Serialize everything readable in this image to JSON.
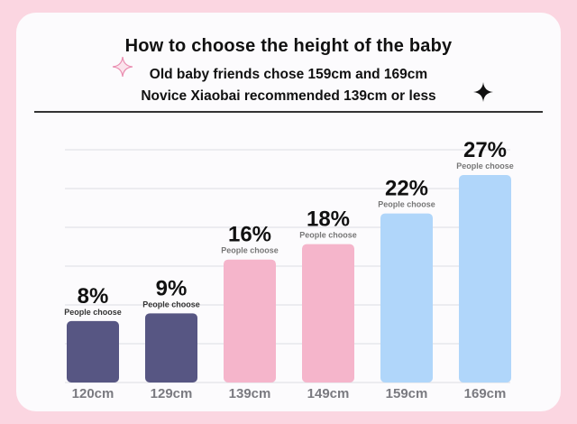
{
  "header": {
    "title": "How to choose the height of the baby",
    "subtitle_1": "Old baby friends chose 159cm and 169cm",
    "subtitle_2": "Novice Xiaobai recommended 139cm or less"
  },
  "icons": {
    "left": "sparkle-icon",
    "right": "sparkle-icon"
  },
  "colors": {
    "background": "#fbd6e1",
    "dark_bar": "#575683",
    "pink_bar": "#f5b5cb",
    "blue_bar": "#b0d6fa"
  },
  "chart_data": {
    "type": "bar",
    "title": "How to choose the height of the baby",
    "categories": [
      "120cm",
      "129cm",
      "139cm",
      "149cm",
      "159cm",
      "169cm"
    ],
    "values": [
      8,
      9,
      16,
      18,
      22,
      27
    ],
    "value_labels": [
      "8%",
      "9%",
      "16%",
      "18%",
      "22%",
      "27%"
    ],
    "bar_caption": "People choose",
    "bar_colors": [
      "#575683",
      "#575683",
      "#f5b5cb",
      "#f5b5cb",
      "#b0d6fa",
      "#b0d6fa"
    ],
    "ylim": [
      0,
      27
    ],
    "grid": true,
    "xlabel": "",
    "ylabel": ""
  }
}
